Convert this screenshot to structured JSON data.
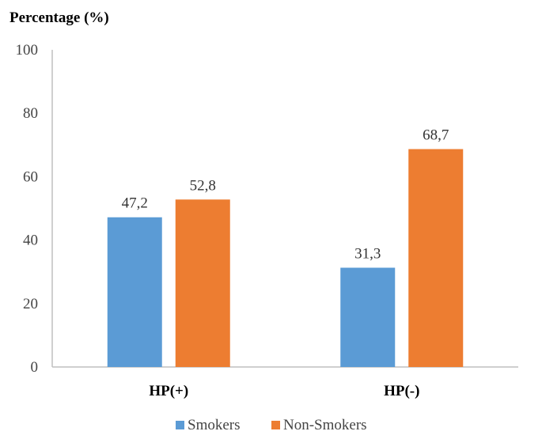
{
  "chart_data": {
    "type": "bar",
    "title": "",
    "ylabel": "Percentage (%)",
    "xlabel": "",
    "categories": [
      "HP(+)",
      "HP(-)"
    ],
    "series": [
      {
        "name": "Smokers",
        "values": [
          47.2,
          31.3
        ],
        "labels": [
          "47,2",
          "31,3"
        ],
        "color": "#5b9bd5"
      },
      {
        "name": "Non-Smokers",
        "values": [
          52.8,
          68.7
        ],
        "labels": [
          "52,8",
          "68,7"
        ],
        "color": "#ed7d31"
      }
    ],
    "ylim": [
      0,
      100
    ],
    "yticks": [
      0,
      20,
      40,
      60,
      80,
      100
    ],
    "grid": false,
    "legend_position": "bottom"
  }
}
